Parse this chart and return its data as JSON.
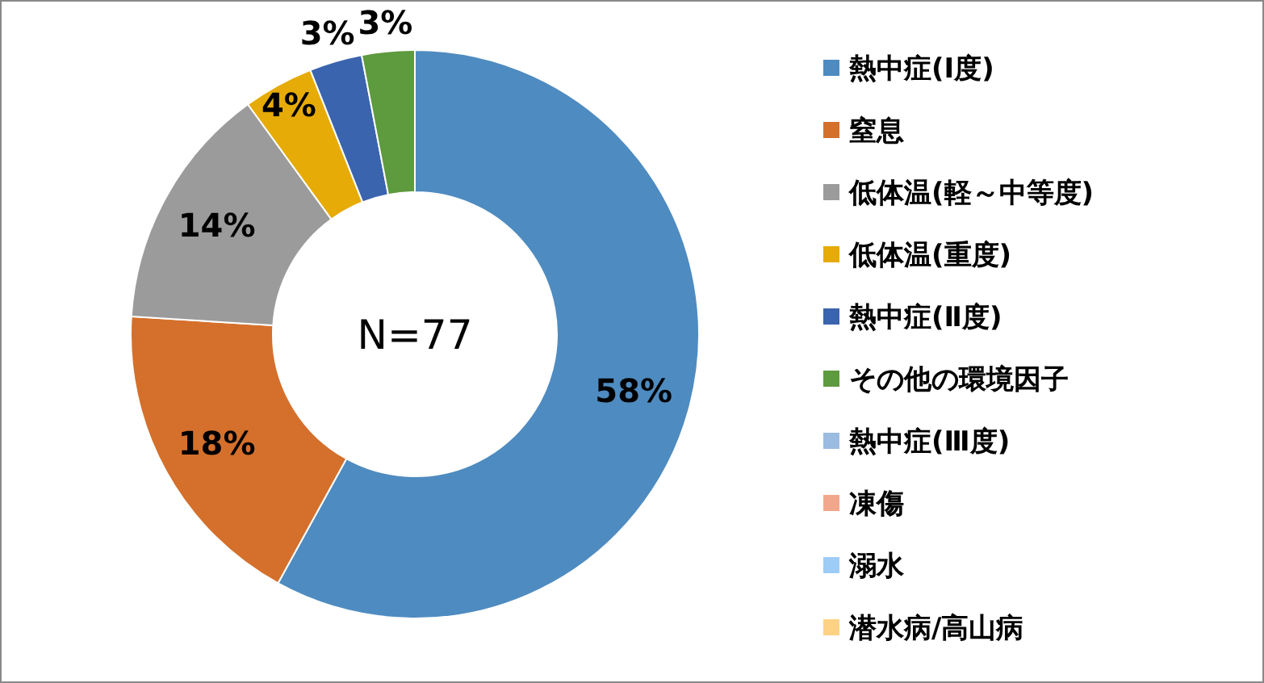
{
  "chart_data": {
    "type": "donut",
    "categories": [
      "熱中症(Ⅰ度)",
      "窒息",
      "低体温(軽～中等度)",
      "低体温(重度)",
      "熱中症(Ⅱ度)",
      "その他の環境因子",
      "熱中症(Ⅲ度)",
      "凍傷",
      "溺水",
      "潜水病/高山病"
    ],
    "values": [
      58,
      18,
      14,
      4,
      3,
      3,
      0,
      0,
      0,
      0
    ],
    "colors": [
      "#4E8BC0",
      "#D4702C",
      "#9B9B9B",
      "#E6AB06",
      "#3B64AE",
      "#5E9A3E",
      "#9BBBE0",
      "#F2A78C",
      "#9DCCF7",
      "#FDD285"
    ],
    "value_labels": [
      "58%",
      "18%",
      "14%",
      "4%",
      "3%",
      "3%",
      null,
      null,
      null,
      null
    ],
    "annotations": [
      "N=77"
    ],
    "legend": "right"
  }
}
